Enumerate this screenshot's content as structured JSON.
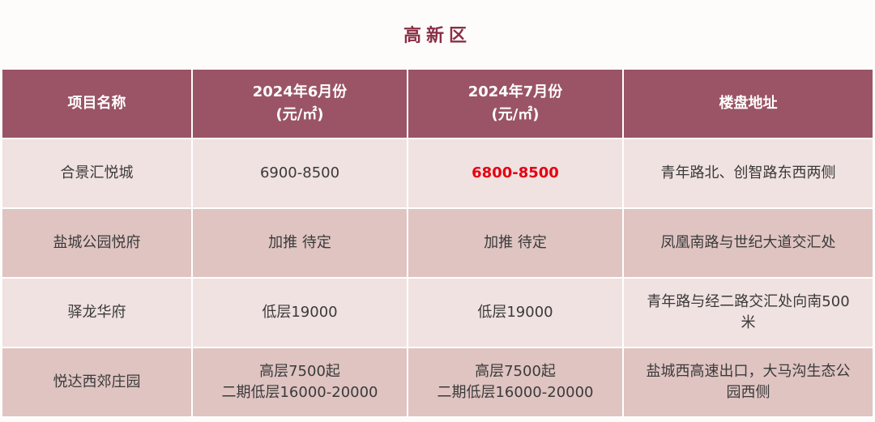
{
  "title": "高新区",
  "headers": {
    "project": "项目名称",
    "june_line1": "2024年6月份",
    "june_line2": "(元/㎡)",
    "july_line1": "2024年7月份",
    "july_line2": "(元/㎡)",
    "address": "楼盘地址"
  },
  "rows": [
    {
      "project": "合景汇悦城",
      "june": [
        "6900-8500"
      ],
      "july": [
        "6800-8500"
      ],
      "address": [
        "青年路北、创智路东西两侧"
      ]
    },
    {
      "project": "盐城公园悦府",
      "june": [
        "加推 待定"
      ],
      "july": [
        "加推 待定"
      ],
      "address": [
        "凤凰南路与世纪大道交汇处"
      ]
    },
    {
      "project": "驿龙华府",
      "june": [
        "低层19000"
      ],
      "july": [
        "低层19000"
      ],
      "address": [
        "青年路与经二路交汇处向南500",
        "米"
      ]
    },
    {
      "project": "悦达西郊庄园",
      "june": [
        "高层7500起",
        "二期低层16000-20000"
      ],
      "july": [
        "高层7500起",
        "二期低层16000-20000"
      ],
      "address": [
        "盐城西高速出口，大马沟生态公",
        "园西侧"
      ]
    }
  ],
  "colors": {
    "header_bg": "#9a5465",
    "row_light": "#f0e2e0",
    "row_dark": "#dfc4c2",
    "title": "#8a2f45",
    "highlight": "#e60012"
  }
}
